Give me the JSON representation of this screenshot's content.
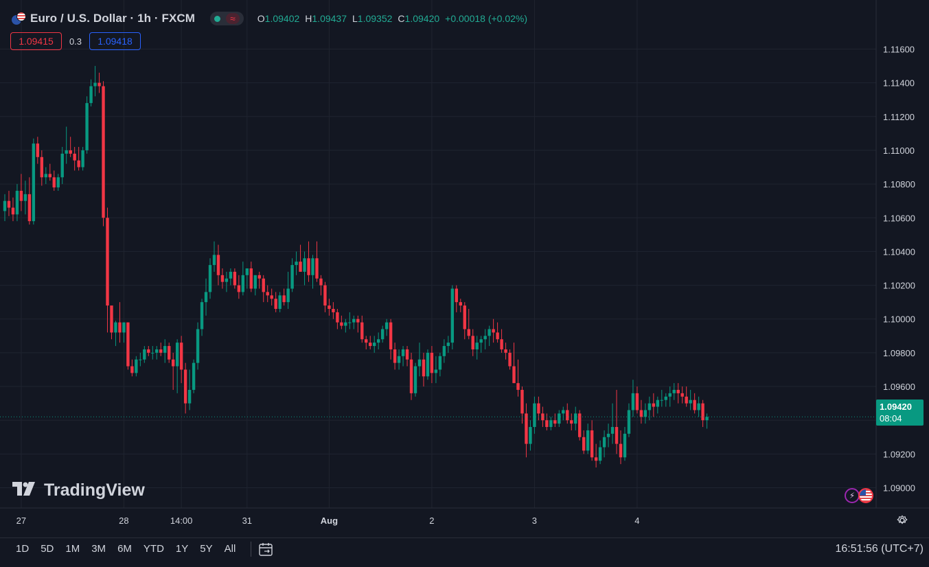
{
  "header": {
    "symbol_title": "Euro / U.S. Dollar · 1h · FXCM",
    "ohlc": {
      "o_label": "O",
      "o_value": "1.09402",
      "h_label": "H",
      "h_value": "1.09437",
      "l_label": "L",
      "l_value": "1.09352",
      "c_label": "C",
      "c_value": "1.09420",
      "change": "+0.00018 (+0.02%)"
    },
    "icons": {
      "symbol": "eur-usd-flag-icon",
      "status": "market-open-dot-icon",
      "delay": "wave-icon"
    }
  },
  "quote": {
    "bid": "1.09415",
    "spread": "0.3",
    "ask": "1.09418"
  },
  "current_price": {
    "price": "1.09420",
    "countdown": "08:04"
  },
  "watermark": "TradingView",
  "bottom_bar": {
    "ranges": [
      "1D",
      "5D",
      "1M",
      "3M",
      "6M",
      "YTD",
      "1Y",
      "5Y",
      "All"
    ],
    "clock": "16:51:56 (UTC+7)"
  },
  "colors": {
    "background": "#131722",
    "up": "#089981",
    "down": "#f23645",
    "grid": "#1f2430",
    "text": "#d1d4dc"
  },
  "chart_data": {
    "type": "candlestick",
    "ylim": [
      1.0888,
      1.1172
    ],
    "y_ticks": [
      "1.11600",
      "1.11400",
      "1.11200",
      "1.11000",
      "1.10800",
      "1.10600",
      "1.10400",
      "1.10200",
      "1.10000",
      "1.09800",
      "1.09600",
      "1.09400",
      "1.09200",
      "1.09000"
    ],
    "x_ticks": [
      {
        "label": "27",
        "i": 4
      },
      {
        "label": "28",
        "i": 29
      },
      {
        "label": "14:00",
        "i": 43
      },
      {
        "label": "31",
        "i": 59
      },
      {
        "label": "Aug",
        "i": 79
      },
      {
        "label": "2",
        "i": 104
      },
      {
        "label": "3",
        "i": 129
      },
      {
        "label": "4",
        "i": 154
      }
    ],
    "last_price": 1.0942,
    "candles": [
      {
        "o": 1.1064,
        "h": 1.1074,
        "l": 1.1058,
        "c": 1.107
      },
      {
        "o": 1.107,
        "h": 1.1076,
        "l": 1.1061,
        "c": 1.1066
      },
      {
        "o": 1.1066,
        "h": 1.1072,
        "l": 1.1058,
        "c": 1.1062
      },
      {
        "o": 1.1062,
        "h": 1.108,
        "l": 1.1058,
        "c": 1.1076
      },
      {
        "o": 1.1076,
        "h": 1.1086,
        "l": 1.1064,
        "c": 1.107
      },
      {
        "o": 1.107,
        "h": 1.1082,
        "l": 1.1062,
        "c": 1.1074
      },
      {
        "o": 1.1074,
        "h": 1.1084,
        "l": 1.1056,
        "c": 1.1058
      },
      {
        "o": 1.1058,
        "h": 1.1107,
        "l": 1.1056,
        "c": 1.1104
      },
      {
        "o": 1.1104,
        "h": 1.1108,
        "l": 1.1092,
        "c": 1.1096
      },
      {
        "o": 1.1096,
        "h": 1.11,
        "l": 1.1079,
        "c": 1.1084
      },
      {
        "o": 1.1084,
        "h": 1.109,
        "l": 1.108,
        "c": 1.1086
      },
      {
        "o": 1.1086,
        "h": 1.1092,
        "l": 1.1082,
        "c": 1.1084
      },
      {
        "o": 1.1084,
        "h": 1.1088,
        "l": 1.1076,
        "c": 1.1078
      },
      {
        "o": 1.1078,
        "h": 1.1086,
        "l": 1.1076,
        "c": 1.1084
      },
      {
        "o": 1.1084,
        "h": 1.1102,
        "l": 1.108,
        "c": 1.1098
      },
      {
        "o": 1.1098,
        "h": 1.1114,
        "l": 1.1092,
        "c": 1.11
      },
      {
        "o": 1.11,
        "h": 1.1108,
        "l": 1.1096,
        "c": 1.1098
      },
      {
        "o": 1.1098,
        "h": 1.1102,
        "l": 1.1088,
        "c": 1.1094
      },
      {
        "o": 1.1094,
        "h": 1.1102,
        "l": 1.1088,
        "c": 1.109
      },
      {
        "o": 1.109,
        "h": 1.1102,
        "l": 1.1088,
        "c": 1.11
      },
      {
        "o": 1.11,
        "h": 1.1132,
        "l": 1.1098,
        "c": 1.1128
      },
      {
        "o": 1.1128,
        "h": 1.1142,
        "l": 1.1126,
        "c": 1.1138
      },
      {
        "o": 1.1138,
        "h": 1.115,
        "l": 1.1132,
        "c": 1.114
      },
      {
        "o": 1.114,
        "h": 1.1146,
        "l": 1.1134,
        "c": 1.1138
      },
      {
        "o": 1.1138,
        "h": 1.1141,
        "l": 1.1055,
        "c": 1.106
      },
      {
        "o": 1.106,
        "h": 1.1066,
        "l": 1.0992,
        "c": 1.1008
      },
      {
        "o": 1.1008,
        "h": 1.1008,
        "l": 1.0988,
        "c": 1.0992
      },
      {
        "o": 1.0992,
        "h": 1.0999,
        "l": 1.0984,
        "c": 1.0998
      },
      {
        "o": 1.0998,
        "h": 1.101,
        "l": 1.0986,
        "c": 1.0992
      },
      {
        "o": 1.0992,
        "h": 1.0998,
        "l": 1.0986,
        "c": 1.0998
      },
      {
        "o": 1.0998,
        "h": 1.0998,
        "l": 1.097,
        "c": 1.0972
      },
      {
        "o": 1.0972,
        "h": 1.0976,
        "l": 1.0966,
        "c": 1.0968
      },
      {
        "o": 1.0968,
        "h": 1.0978,
        "l": 1.0966,
        "c": 1.0976
      },
      {
        "o": 1.0976,
        "h": 1.098,
        "l": 1.0972,
        "c": 1.0976
      },
      {
        "o": 1.0976,
        "h": 1.0984,
        "l": 1.0974,
        "c": 1.0982
      },
      {
        "o": 1.0982,
        "h": 1.0984,
        "l": 1.0978,
        "c": 1.098
      },
      {
        "o": 1.098,
        "h": 1.0984,
        "l": 1.0976,
        "c": 1.098
      },
      {
        "o": 1.098,
        "h": 1.0984,
        "l": 1.0976,
        "c": 1.0982
      },
      {
        "o": 1.0982,
        "h": 1.0986,
        "l": 1.0978,
        "c": 1.098
      },
      {
        "o": 1.098,
        "h": 1.0988,
        "l": 1.0974,
        "c": 1.0984
      },
      {
        "o": 1.0984,
        "h": 1.0986,
        "l": 1.0974,
        "c": 1.0976
      },
      {
        "o": 1.0976,
        "h": 1.098,
        "l": 1.0958,
        "c": 1.0972
      },
      {
        "o": 1.0972,
        "h": 1.0988,
        "l": 1.0956,
        "c": 1.0986
      },
      {
        "o": 1.0986,
        "h": 1.099,
        "l": 1.0962,
        "c": 1.097
      },
      {
        "o": 1.097,
        "h": 1.0974,
        "l": 1.0944,
        "c": 1.095
      },
      {
        "o": 1.095,
        "h": 1.097,
        "l": 1.0946,
        "c": 1.0958
      },
      {
        "o": 1.0958,
        "h": 1.0976,
        "l": 1.0956,
        "c": 1.0974
      },
      {
        "o": 1.0974,
        "h": 1.0998,
        "l": 1.097,
        "c": 1.0994
      },
      {
        "o": 1.0994,
        "h": 1.1012,
        "l": 1.099,
        "c": 1.101
      },
      {
        "o": 1.101,
        "h": 1.1024,
        "l": 1.1002,
        "c": 1.1016
      },
      {
        "o": 1.1016,
        "h": 1.1036,
        "l": 1.1012,
        "c": 1.1032
      },
      {
        "o": 1.1032,
        "h": 1.1046,
        "l": 1.1028,
        "c": 1.1038
      },
      {
        "o": 1.1038,
        "h": 1.1044,
        "l": 1.102,
        "c": 1.1026
      },
      {
        "o": 1.1026,
        "h": 1.103,
        "l": 1.1018,
        "c": 1.1022
      },
      {
        "o": 1.1022,
        "h": 1.1028,
        "l": 1.1016,
        "c": 1.1024
      },
      {
        "o": 1.1024,
        "h": 1.103,
        "l": 1.102,
        "c": 1.1028
      },
      {
        "o": 1.1028,
        "h": 1.103,
        "l": 1.1018,
        "c": 1.102
      },
      {
        "o": 1.102,
        "h": 1.1026,
        "l": 1.1012,
        "c": 1.1016
      },
      {
        "o": 1.1016,
        "h": 1.1034,
        "l": 1.1014,
        "c": 1.1026
      },
      {
        "o": 1.1026,
        "h": 1.103,
        "l": 1.1018,
        "c": 1.103
      },
      {
        "o": 1.103,
        "h": 1.1034,
        "l": 1.1016,
        "c": 1.1018
      },
      {
        "o": 1.1018,
        "h": 1.1026,
        "l": 1.1014,
        "c": 1.1026
      },
      {
        "o": 1.1026,
        "h": 1.1028,
        "l": 1.1018,
        "c": 1.1024
      },
      {
        "o": 1.1024,
        "h": 1.1026,
        "l": 1.101,
        "c": 1.1016
      },
      {
        "o": 1.1016,
        "h": 1.102,
        "l": 1.101,
        "c": 1.1014
      },
      {
        "o": 1.1014,
        "h": 1.1018,
        "l": 1.1008,
        "c": 1.1012
      },
      {
        "o": 1.1012,
        "h": 1.1016,
        "l": 1.1004,
        "c": 1.1006
      },
      {
        "o": 1.1006,
        "h": 1.1016,
        "l": 1.1004,
        "c": 1.1014
      },
      {
        "o": 1.1014,
        "h": 1.1018,
        "l": 1.1008,
        "c": 1.101
      },
      {
        "o": 1.101,
        "h": 1.1028,
        "l": 1.1006,
        "c": 1.1018
      },
      {
        "o": 1.1018,
        "h": 1.1036,
        "l": 1.1016,
        "c": 1.1032
      },
      {
        "o": 1.1032,
        "h": 1.104,
        "l": 1.1026,
        "c": 1.1034
      },
      {
        "o": 1.1034,
        "h": 1.1044,
        "l": 1.1028,
        "c": 1.1028
      },
      {
        "o": 1.1028,
        "h": 1.104,
        "l": 1.102,
        "c": 1.1036
      },
      {
        "o": 1.1036,
        "h": 1.1046,
        "l": 1.1022,
        "c": 1.1026
      },
      {
        "o": 1.1026,
        "h": 1.1038,
        "l": 1.1018,
        "c": 1.1036
      },
      {
        "o": 1.1036,
        "h": 1.1046,
        "l": 1.1022,
        "c": 1.1024
      },
      {
        "o": 1.1024,
        "h": 1.1026,
        "l": 1.1014,
        "c": 1.102
      },
      {
        "o": 1.102,
        "h": 1.1022,
        "l": 1.1004,
        "c": 1.1008
      },
      {
        "o": 1.1008,
        "h": 1.1012,
        "l": 1.1002,
        "c": 1.1006
      },
      {
        "o": 1.1006,
        "h": 1.101,
        "l": 1.1,
        "c": 1.1004
      },
      {
        "o": 1.1004,
        "h": 1.1006,
        "l": 1.0994,
        "c": 1.0998
      },
      {
        "o": 1.0998,
        "h": 1.1002,
        "l": 1.0994,
        "c": 1.0996
      },
      {
        "o": 1.0996,
        "h": 1.1,
        "l": 1.0992,
        "c": 1.0998
      },
      {
        "o": 1.0998,
        "h": 1.1004,
        "l": 1.0994,
        "c": 1.0998
      },
      {
        "o": 1.0998,
        "h": 1.1002,
        "l": 1.0994,
        "c": 1.1
      },
      {
        "o": 1.1,
        "h": 1.1002,
        "l": 1.0992,
        "c": 1.0998
      },
      {
        "o": 1.0998,
        "h": 1.1002,
        "l": 1.0986,
        "c": 1.0988
      },
      {
        "o": 1.0988,
        "h": 1.099,
        "l": 1.0982,
        "c": 1.0986
      },
      {
        "o": 1.0986,
        "h": 1.099,
        "l": 1.0982,
        "c": 1.0984
      },
      {
        "o": 1.0984,
        "h": 1.099,
        "l": 1.098,
        "c": 1.0986
      },
      {
        "o": 1.0986,
        "h": 1.0992,
        "l": 1.0982,
        "c": 1.0988
      },
      {
        "o": 1.0988,
        "h": 1.0996,
        "l": 1.0986,
        "c": 1.0994
      },
      {
        "o": 1.0994,
        "h": 1.1,
        "l": 1.099,
        "c": 1.0998
      },
      {
        "o": 1.0998,
        "h": 1.1,
        "l": 1.0976,
        "c": 1.0982
      },
      {
        "o": 1.0982,
        "h": 1.0986,
        "l": 1.097,
        "c": 1.0974
      },
      {
        "o": 1.0974,
        "h": 1.0982,
        "l": 1.097,
        "c": 1.0978
      },
      {
        "o": 1.0978,
        "h": 1.0984,
        "l": 1.0972,
        "c": 1.0982
      },
      {
        "o": 1.0982,
        "h": 1.0984,
        "l": 1.0972,
        "c": 1.0976
      },
      {
        "o": 1.0976,
        "h": 1.098,
        "l": 1.0952,
        "c": 1.0956
      },
      {
        "o": 1.0956,
        "h": 1.0974,
        "l": 1.0954,
        "c": 1.0972
      },
      {
        "o": 1.0972,
        "h": 1.0986,
        "l": 1.0966,
        "c": 1.0976
      },
      {
        "o": 1.0976,
        "h": 1.098,
        "l": 1.096,
        "c": 1.0966
      },
      {
        "o": 1.0966,
        "h": 1.0982,
        "l": 1.0964,
        "c": 1.098
      },
      {
        "o": 1.098,
        "h": 1.0984,
        "l": 1.0962,
        "c": 1.0968
      },
      {
        "o": 1.0968,
        "h": 1.0978,
        "l": 1.0962,
        "c": 1.097
      },
      {
        "o": 1.097,
        "h": 1.098,
        "l": 1.0966,
        "c": 1.0978
      },
      {
        "o": 1.0978,
        "h": 1.0988,
        "l": 1.0974,
        "c": 1.0984
      },
      {
        "o": 1.0984,
        "h": 1.099,
        "l": 1.098,
        "c": 1.0986
      },
      {
        "o": 1.0986,
        "h": 1.102,
        "l": 1.0982,
        "c": 1.1018
      },
      {
        "o": 1.1018,
        "h": 1.102,
        "l": 1.1004,
        "c": 1.101
      },
      {
        "o": 1.101,
        "h": 1.1012,
        "l": 1.1004,
        "c": 1.1008
      },
      {
        "o": 1.1008,
        "h": 1.101,
        "l": 1.0988,
        "c": 1.0994
      },
      {
        "o": 1.0994,
        "h": 1.1006,
        "l": 1.0988,
        "c": 1.099
      },
      {
        "o": 1.099,
        "h": 1.0994,
        "l": 1.0978,
        "c": 1.0982
      },
      {
        "o": 1.0982,
        "h": 1.099,
        "l": 1.0976,
        "c": 1.0986
      },
      {
        "o": 1.0986,
        "h": 1.099,
        "l": 1.098,
        "c": 1.0988
      },
      {
        "o": 1.0988,
        "h": 1.0994,
        "l": 1.0982,
        "c": 1.099
      },
      {
        "o": 1.099,
        "h": 1.0996,
        "l": 1.0984,
        "c": 1.0994
      },
      {
        "o": 1.0994,
        "h": 1.1,
        "l": 1.0986,
        "c": 1.0992
      },
      {
        "o": 1.0992,
        "h": 1.0998,
        "l": 1.0986,
        "c": 1.0988
      },
      {
        "o": 1.0988,
        "h": 1.0994,
        "l": 1.098,
        "c": 1.0982
      },
      {
        "o": 1.0982,
        "h": 1.0986,
        "l": 1.0976,
        "c": 1.098
      },
      {
        "o": 1.098,
        "h": 1.0982,
        "l": 1.097,
        "c": 1.0972
      },
      {
        "o": 1.0972,
        "h": 1.0986,
        "l": 1.0962,
        "c": 1.0962
      },
      {
        "o": 1.0962,
        "h": 1.0976,
        "l": 1.0954,
        "c": 1.0958
      },
      {
        "o": 1.0958,
        "h": 1.096,
        "l": 1.0938,
        "c": 1.0944
      },
      {
        "o": 1.0944,
        "h": 1.095,
        "l": 1.0918,
        "c": 1.0926
      },
      {
        "o": 1.0926,
        "h": 1.094,
        "l": 1.0922,
        "c": 1.0936
      },
      {
        "o": 1.0936,
        "h": 1.0954,
        "l": 1.0932,
        "c": 1.095
      },
      {
        "o": 1.095,
        "h": 1.0954,
        "l": 1.094,
        "c": 1.0944
      },
      {
        "o": 1.0944,
        "h": 1.0948,
        "l": 1.0936,
        "c": 1.094
      },
      {
        "o": 1.094,
        "h": 1.0944,
        "l": 1.0934,
        "c": 1.0936
      },
      {
        "o": 1.0936,
        "h": 1.0942,
        "l": 1.0934,
        "c": 1.094
      },
      {
        "o": 1.094,
        "h": 1.0944,
        "l": 1.0936,
        "c": 1.0938
      },
      {
        "o": 1.0938,
        "h": 1.0946,
        "l": 1.0936,
        "c": 1.0944
      },
      {
        "o": 1.0944,
        "h": 1.0948,
        "l": 1.094,
        "c": 1.0946
      },
      {
        "o": 1.0946,
        "h": 1.095,
        "l": 1.0938,
        "c": 1.094
      },
      {
        "o": 1.094,
        "h": 1.0944,
        "l": 1.0934,
        "c": 1.0938
      },
      {
        "o": 1.0938,
        "h": 1.0948,
        "l": 1.0934,
        "c": 1.0944
      },
      {
        "o": 1.0944,
        "h": 1.0946,
        "l": 1.0928,
        "c": 1.093
      },
      {
        "o": 1.093,
        "h": 1.0934,
        "l": 1.092,
        "c": 1.0922
      },
      {
        "o": 1.0922,
        "h": 1.0938,
        "l": 1.092,
        "c": 1.0934
      },
      {
        "o": 1.0934,
        "h": 1.094,
        "l": 1.0916,
        "c": 1.0918
      },
      {
        "o": 1.0918,
        "h": 1.0926,
        "l": 1.0912,
        "c": 1.0916
      },
      {
        "o": 1.0916,
        "h": 1.0928,
        "l": 1.0914,
        "c": 1.0924
      },
      {
        "o": 1.0924,
        "h": 1.0934,
        "l": 1.0918,
        "c": 1.093
      },
      {
        "o": 1.093,
        "h": 1.0938,
        "l": 1.0924,
        "c": 1.0932
      },
      {
        "o": 1.0932,
        "h": 1.095,
        "l": 1.0926,
        "c": 1.0936
      },
      {
        "o": 1.0936,
        "h": 1.0958,
        "l": 1.092,
        "c": 1.0926
      },
      {
        "o": 1.0926,
        "h": 1.0934,
        "l": 1.0914,
        "c": 1.0918
      },
      {
        "o": 1.0918,
        "h": 1.0936,
        "l": 1.0916,
        "c": 1.0932
      },
      {
        "o": 1.0932,
        "h": 1.095,
        "l": 1.093,
        "c": 1.0946
      },
      {
        "o": 1.0946,
        "h": 1.0964,
        "l": 1.0942,
        "c": 1.0956
      },
      {
        "o": 1.0956,
        "h": 1.096,
        "l": 1.0944,
        "c": 1.0946
      },
      {
        "o": 1.0946,
        "h": 1.0952,
        "l": 1.0938,
        "c": 1.0942
      },
      {
        "o": 1.0942,
        "h": 1.095,
        "l": 1.0938,
        "c": 1.0946
      },
      {
        "o": 1.0946,
        "h": 1.0954,
        "l": 1.094,
        "c": 1.095
      },
      {
        "o": 1.095,
        "h": 1.0956,
        "l": 1.0942,
        "c": 1.0948
      },
      {
        "o": 1.0948,
        "h": 1.0954,
        "l": 1.0944,
        "c": 1.0952
      },
      {
        "o": 1.0952,
        "h": 1.0958,
        "l": 1.0948,
        "c": 1.0952
      },
      {
        "o": 1.0952,
        "h": 1.0956,
        "l": 1.0948,
        "c": 1.0954
      },
      {
        "o": 1.0954,
        "h": 1.096,
        "l": 1.0948,
        "c": 1.0956
      },
      {
        "o": 1.0956,
        "h": 1.0962,
        "l": 1.0952,
        "c": 1.0958
      },
      {
        "o": 1.0958,
        "h": 1.0962,
        "l": 1.095,
        "c": 1.0956
      },
      {
        "o": 1.0956,
        "h": 1.096,
        "l": 1.095,
        "c": 1.0954
      },
      {
        "o": 1.0954,
        "h": 1.096,
        "l": 1.0948,
        "c": 1.095
      },
      {
        "o": 1.095,
        "h": 1.0958,
        "l": 1.0946,
        "c": 1.0952
      },
      {
        "o": 1.0952,
        "h": 1.0956,
        "l": 1.0944,
        "c": 1.0946
      },
      {
        "o": 1.0946,
        "h": 1.0954,
        "l": 1.0942,
        "c": 1.095
      },
      {
        "o": 1.095,
        "h": 1.0952,
        "l": 1.0936,
        "c": 1.094
      },
      {
        "o": 1.094,
        "h": 1.0944,
        "l": 1.0935,
        "c": 1.0942
      }
    ]
  }
}
